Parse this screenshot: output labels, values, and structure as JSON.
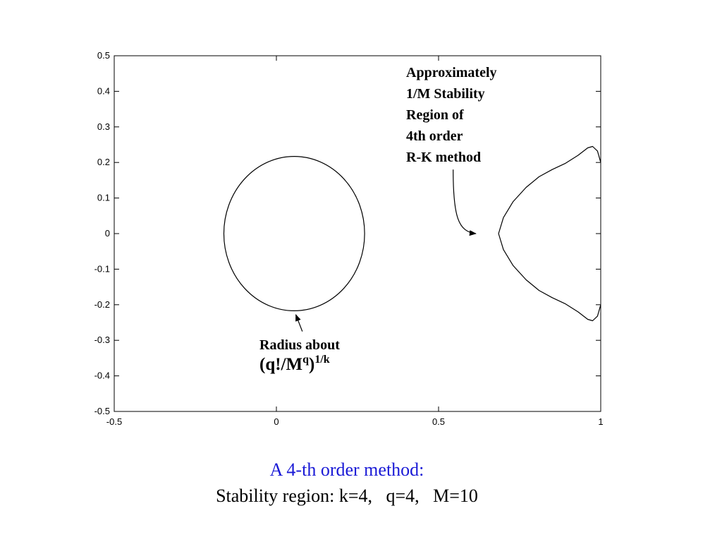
{
  "chart_data": {
    "type": "line",
    "xlim": [
      -0.5,
      1
    ],
    "ylim": [
      -0.5,
      0.5
    ],
    "x_ticks": [
      -0.5,
      0,
      0.5,
      1
    ],
    "x_tick_labels": [
      "-0.5",
      "0",
      "0.5",
      "1"
    ],
    "y_ticks": [
      0.5,
      0.4,
      0.3,
      0.2,
      0.1,
      0,
      -0.1,
      -0.2,
      -0.3,
      -0.4,
      -0.5
    ],
    "y_tick_labels": [
      "0.5",
      "0.4",
      "0.3",
      "0.2",
      "0.1",
      "0",
      "-0.1",
      "-0.2",
      "-0.3",
      "-0.4",
      "-0.5"
    ],
    "grid": false,
    "series": [
      {
        "shape": "circle",
        "center": [
          0.055,
          0
        ],
        "radius": 0.217
      },
      {
        "shape": "curve",
        "points": [
          [
            1.0,
            0.2
          ],
          [
            0.99,
            0.232
          ],
          [
            0.975,
            0.245
          ],
          [
            0.96,
            0.241
          ],
          [
            0.93,
            0.22
          ],
          [
            0.89,
            0.197
          ],
          [
            0.85,
            0.18
          ],
          [
            0.81,
            0.16
          ],
          [
            0.77,
            0.13
          ],
          [
            0.73,
            0.09
          ],
          [
            0.7,
            0.045
          ],
          [
            0.685,
            0.0
          ],
          [
            0.7,
            -0.045
          ],
          [
            0.73,
            -0.09
          ],
          [
            0.77,
            -0.13
          ],
          [
            0.81,
            -0.16
          ],
          [
            0.85,
            -0.18
          ],
          [
            0.89,
            -0.197
          ],
          [
            0.93,
            -0.22
          ],
          [
            0.96,
            -0.241
          ],
          [
            0.975,
            -0.245
          ],
          [
            0.99,
            -0.232
          ],
          [
            1.0,
            -0.2
          ]
        ]
      }
    ],
    "annotations": [
      {
        "id": "rk",
        "lines": [
          "Approximately",
          "1/M Stability",
          "Region of",
          "4th order",
          "R-K method"
        ],
        "arrow_from": [
          0.545,
          0.18
        ],
        "arrow_ctrl1": [
          0.545,
          0.05
        ],
        "arrow_ctrl2": [
          0.56,
          0.005
        ],
        "arrow_to": [
          0.615,
          0.0
        ]
      },
      {
        "id": "radius",
        "line1": "Radius about",
        "expr_main": "(q!/M",
        "expr_sup1": "q",
        "expr_close": ")",
        "expr_sup2": "1/k",
        "arrow_from": [
          0.08,
          -0.275
        ],
        "arrow_to": [
          0.06,
          -0.228
        ]
      }
    ]
  },
  "caption": {
    "title": "A 4-th order method:",
    "subtitle": "Stability region: k=4,   q=4,   M=10"
  }
}
